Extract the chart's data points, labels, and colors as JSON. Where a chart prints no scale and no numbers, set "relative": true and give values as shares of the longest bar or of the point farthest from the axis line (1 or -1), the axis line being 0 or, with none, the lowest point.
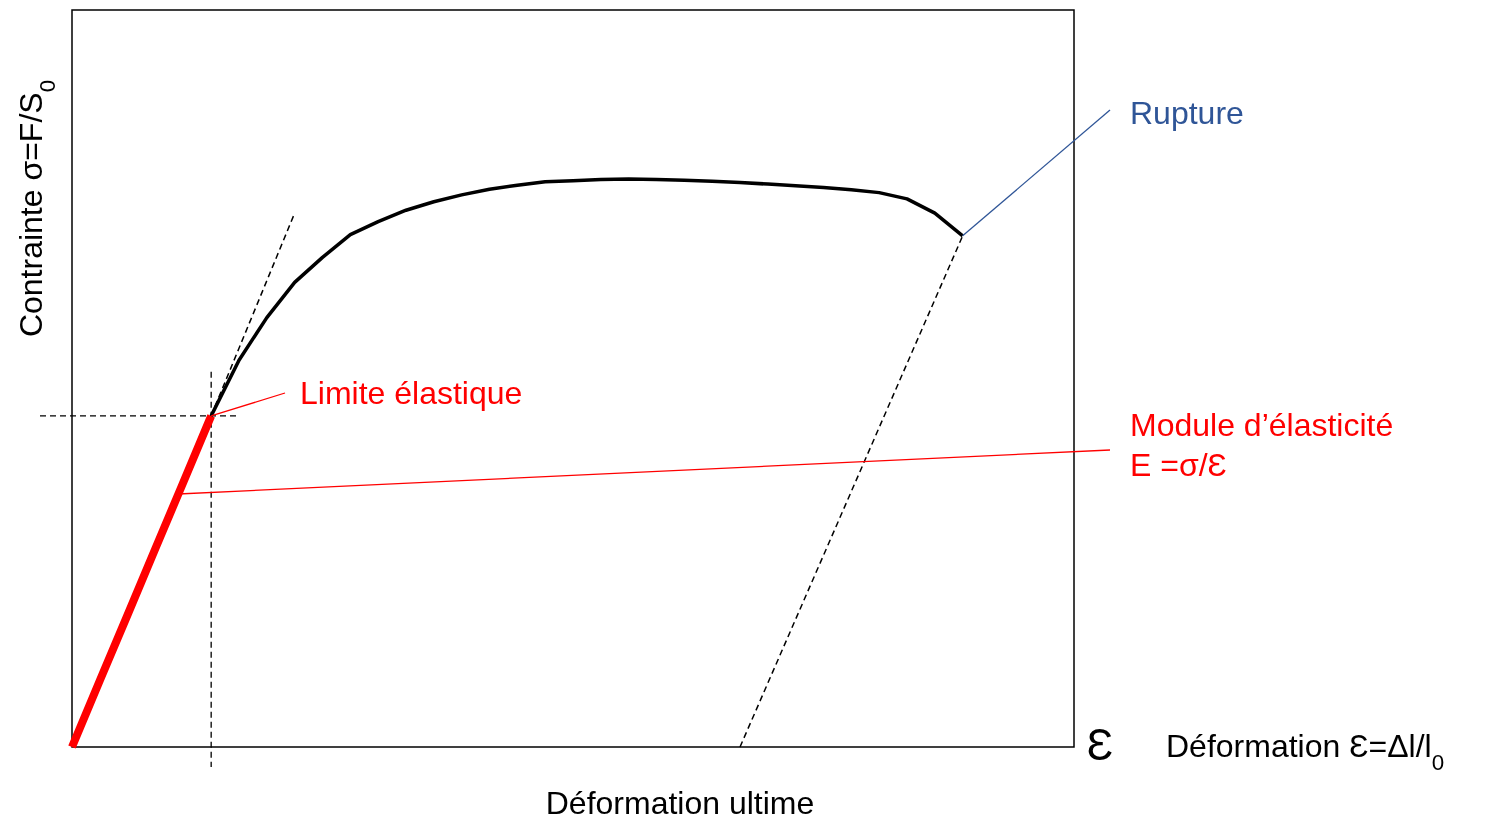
{
  "chart_data": {
    "type": "line",
    "relative": true,
    "ylabel": "Contrainte σ=F/S$_{0}$",
    "xlabel": "Déformation Ɛ=Δl/l$_{0}$",
    "line_style": "solid",
    "categories": [
      null,
      null,
      null,
      null,
      null,
      null,
      null,
      null,
      null,
      null,
      null,
      null,
      null,
      null,
      null,
      null,
      null,
      null,
      null,
      null,
      null,
      null,
      null,
      null,
      null,
      null,
      null,
      null,
      null,
      null,
      null,
      null,
      null,
      null,
      null,
      null,
      null
    ],
    "series": [
      {
        "color": "#ff0000",
        "values": [
          0,
          0.117,
          0.233,
          0.35,
          0.466,
          0.583,
          null,
          null,
          null,
          null,
          null,
          null,
          null,
          null,
          null,
          null,
          null,
          null,
          null,
          null,
          null,
          null,
          null,
          null,
          null,
          null,
          null,
          null,
          null,
          null,
          null,
          null,
          null,
          null,
          null,
          null,
          null
        ]
      },
      {
        "color": "#000000",
        "values": [
          null,
          null,
          null,
          null,
          null,
          0.583,
          0.681,
          0.756,
          0.818,
          0.862,
          0.902,
          0.925,
          0.945,
          0.96,
          0.972,
          0.982,
          0.989,
          0.995,
          0.997,
          0.999,
          1,
          0.999,
          0.998,
          0.996,
          0.994,
          0.991,
          0.988,
          0.985,
          0.981,
          0.976,
          0.965,
          0.94,
          0.9,
          null,
          null,
          null,
          null
        ]
      },
      {
        "color": "#000000",
        "line_style": "dashed",
        "values": [
          null,
          null,
          null,
          null,
          null,
          0.583,
          0.702,
          0.821,
          0.94,
          null,
          null,
          null,
          null,
          null,
          null,
          null,
          null,
          null,
          null,
          null,
          null,
          null,
          null,
          null,
          null,
          null,
          null,
          null,
          null,
          null,
          null,
          null,
          null,
          null,
          null,
          null,
          null
        ]
      },
      {
        "color": "#000000",
        "line_style": "dashed",
        "values": [
          null,
          null,
          null,
          null,
          null,
          null,
          null,
          null,
          null,
          null,
          null,
          null,
          null,
          null,
          null,
          null,
          null,
          null,
          null,
          null,
          null,
          null,
          null,
          null,
          0,
          0.1125,
          0.225,
          0.3375,
          0.45,
          0.5625,
          0.675,
          0.7875,
          0.9,
          null,
          null,
          null,
          null
        ]
      }
    ],
    "ref_lines": [
      {
        "axis": "y",
        "value": 0.583,
        "line_style": "dashed",
        "color": "#000000"
      }
    ],
    "annotations": [
      "Limite élastique",
      "Rupture",
      "Module d’élasticité\nE =σ/Ɛ",
      "Déformation ultime",
      "Ɛ"
    ]
  }
}
